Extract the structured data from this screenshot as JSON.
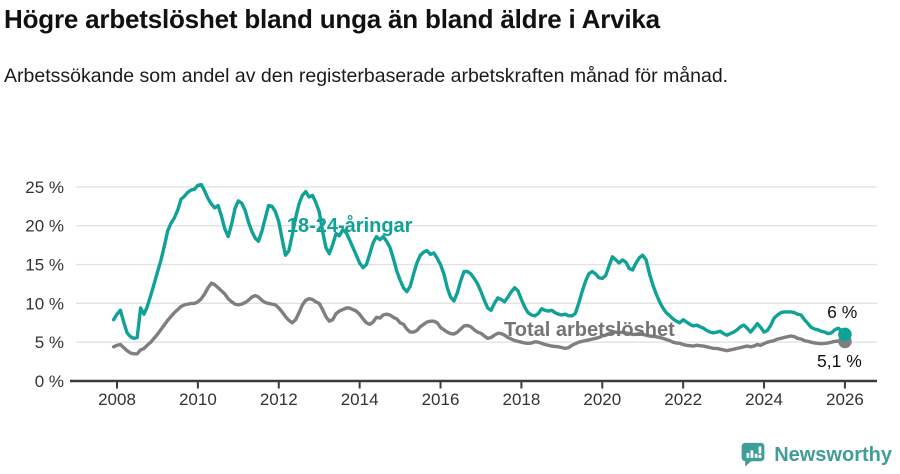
{
  "footer": {
    "brand": "Newsworthy"
  },
  "chart_data": {
    "type": "line",
    "title": "Högre arbetslöshet bland unga än bland äldre i Arvika",
    "subtitle": "Arbetssökande som andel av den registerbaserade arbetskraften månad för månad.",
    "grid": true,
    "legend": "inline-labels",
    "ylim": [
      0,
      25.6
    ],
    "x_range_years": [
      2007.92,
      2026.0
    ],
    "frequency": "monthly",
    "start": {
      "year": 2007,
      "month": 12
    },
    "x_ticks": [
      2008,
      2010,
      2012,
      2014,
      2016,
      2018,
      2020,
      2022,
      2024,
      2026
    ],
    "y_ticks": [
      {
        "v": 0,
        "label": "0 %"
      },
      {
        "v": 5,
        "label": "5 %"
      },
      {
        "v": 10,
        "label": "10 %"
      },
      {
        "v": 15,
        "label": "15 %"
      },
      {
        "v": 20,
        "label": "20 %"
      },
      {
        "v": 25,
        "label": "25 %"
      }
    ],
    "series": [
      {
        "name": "18-24-åringar",
        "color": "#10a296",
        "label_pos": {
          "year": 2012.2,
          "value": 19.2
        },
        "end_label": "6 %",
        "end_label_pos": {
          "year": 2025.56,
          "value": 8.1
        },
        "values": [
          7.9,
          8.6,
          9.1,
          7.6,
          6.2,
          5.7,
          5.5,
          5.6,
          9.4,
          8.6,
          9.6,
          11.0,
          12.5,
          14.0,
          15.5,
          17.3,
          19.3,
          20.3,
          21.0,
          22.0,
          23.4,
          23.8,
          24.3,
          24.6,
          24.7,
          25.2,
          25.3,
          24.5,
          23.5,
          22.8,
          22.3,
          22.6,
          21.2,
          19.6,
          18.6,
          20.2,
          22.2,
          23.2,
          22.9,
          22.0,
          20.5,
          19.3,
          18.4,
          18.0,
          19.3,
          21.0,
          22.6,
          22.5,
          21.8,
          20.5,
          18.3,
          16.2,
          16.8,
          18.8,
          21.0,
          22.8,
          23.9,
          24.4,
          23.7,
          23.9,
          23.0,
          21.8,
          19.3,
          17.2,
          16.4,
          17.6,
          19.0,
          18.7,
          19.5,
          19.1,
          18.2,
          17.2,
          16.2,
          15.2,
          14.6,
          15.0,
          16.4,
          17.8,
          18.6,
          18.2,
          18.6,
          18.0,
          17.2,
          15.8,
          14.2,
          13.0,
          12.0,
          11.5,
          12.2,
          13.8,
          15.2,
          16.2,
          16.6,
          16.8,
          16.3,
          16.5,
          15.8,
          15.0,
          13.8,
          12.0,
          10.8,
          10.3,
          11.4,
          12.9,
          14.1,
          14.1,
          13.8,
          13.2,
          12.5,
          11.5,
          10.4,
          9.4,
          9.1,
          10.0,
          10.7,
          10.5,
          10.2,
          10.8,
          11.5,
          12.0,
          11.6,
          10.5,
          9.5,
          8.8,
          8.5,
          8.4,
          8.7,
          9.3,
          9.1,
          9.0,
          9.1,
          8.8,
          8.6,
          8.5,
          8.6,
          8.4,
          8.4,
          8.7,
          10.0,
          11.5,
          12.8,
          13.8,
          14.1,
          13.8,
          13.3,
          13.2,
          13.6,
          14.8,
          16.0,
          15.6,
          15.2,
          15.6,
          15.3,
          14.5,
          14.3,
          15.2,
          15.9,
          16.2,
          15.6,
          13.8,
          12.4,
          11.2,
          10.2,
          9.4,
          8.8,
          8.4,
          8.0,
          7.7,
          7.5,
          7.9,
          7.6,
          7.3,
          7.1,
          7.2,
          7.0,
          6.8,
          6.5,
          6.3,
          6.2,
          6.3,
          6.4,
          6.1,
          5.9,
          6.1,
          6.3,
          6.6,
          7.0,
          7.2,
          6.8,
          6.3,
          6.8,
          7.4,
          6.9,
          6.3,
          6.5,
          7.2,
          8.1,
          8.5,
          8.8,
          8.9,
          8.9,
          8.9,
          8.8,
          8.6,
          8.5,
          7.9,
          7.4,
          6.9,
          6.7,
          6.6,
          6.4,
          6.3,
          6.1,
          6.2,
          6.6,
          6.8,
          6.5,
          6.0
        ]
      },
      {
        "name": "Total arbetslöshet",
        "color": "#7f7f7f",
        "label_color": "#747474",
        "label_pos": {
          "year": 2017.57,
          "value": 5.8
        },
        "end_label": "5,1 %",
        "end_label_pos": {
          "year": 2025.31,
          "value": 1.8
        },
        "values": [
          4.4,
          4.6,
          4.7,
          4.3,
          3.9,
          3.6,
          3.5,
          3.5,
          4.0,
          4.2,
          4.6,
          5.0,
          5.5,
          6.0,
          6.6,
          7.2,
          7.8,
          8.3,
          8.8,
          9.2,
          9.6,
          9.8,
          9.9,
          10.0,
          10.0,
          10.2,
          10.6,
          11.2,
          12.0,
          12.6,
          12.4,
          12.0,
          11.6,
          11.2,
          10.6,
          10.2,
          9.9,
          9.8,
          9.9,
          10.1,
          10.4,
          10.8,
          11.0,
          10.8,
          10.4,
          10.1,
          10.0,
          9.9,
          9.8,
          9.4,
          8.9,
          8.3,
          7.8,
          7.5,
          7.9,
          8.8,
          9.8,
          10.4,
          10.6,
          10.5,
          10.2,
          10.0,
          9.2,
          8.3,
          7.7,
          7.9,
          8.7,
          9.0,
          9.2,
          9.4,
          9.4,
          9.2,
          9.0,
          8.6,
          8.0,
          7.5,
          7.3,
          7.6,
          8.2,
          8.1,
          8.5,
          8.6,
          8.5,
          8.2,
          8.0,
          7.5,
          7.3,
          6.7,
          6.3,
          6.3,
          6.5,
          7.0,
          7.3,
          7.6,
          7.7,
          7.7,
          7.5,
          6.9,
          6.6,
          6.3,
          6.1,
          6.05,
          6.3,
          6.7,
          7.1,
          7.15,
          7.0,
          6.6,
          6.3,
          6.15,
          5.8,
          5.5,
          5.6,
          5.9,
          6.15,
          6.1,
          5.9,
          5.6,
          5.4,
          5.2,
          5.1,
          5.0,
          4.9,
          4.85,
          4.9,
          5.05,
          5.0,
          4.85,
          4.7,
          4.6,
          4.5,
          4.45,
          4.4,
          4.3,
          4.2,
          4.3,
          4.6,
          4.8,
          5.0,
          5.1,
          5.2,
          5.3,
          5.4,
          5.5,
          5.6,
          5.8,
          5.9,
          6.1,
          6.3,
          6.3,
          6.2,
          6.3,
          6.2,
          6.1,
          6.0,
          6.0,
          6.1,
          6.0,
          5.9,
          5.8,
          5.75,
          5.7,
          5.6,
          5.5,
          5.35,
          5.2,
          5.0,
          4.9,
          4.85,
          4.7,
          4.6,
          4.55,
          4.5,
          4.6,
          4.55,
          4.5,
          4.4,
          4.3,
          4.2,
          4.2,
          4.1,
          4.0,
          3.9,
          4.0,
          4.1,
          4.2,
          4.3,
          4.4,
          4.5,
          4.4,
          4.5,
          4.7,
          4.6,
          4.8,
          5.0,
          5.1,
          5.2,
          5.4,
          5.5,
          5.6,
          5.7,
          5.8,
          5.7,
          5.5,
          5.4,
          5.2,
          5.1,
          5.0,
          4.9,
          4.85,
          4.8,
          4.85,
          4.9,
          5.0,
          5.1,
          5.15,
          5.1,
          5.1
        ]
      }
    ],
    "colors": {
      "accent_teal": "#10a296",
      "gray": "#7f7f7f",
      "axis": "#3b3b3b",
      "gridline": "#e2e2e2",
      "brand": "#3f9e9a"
    }
  }
}
